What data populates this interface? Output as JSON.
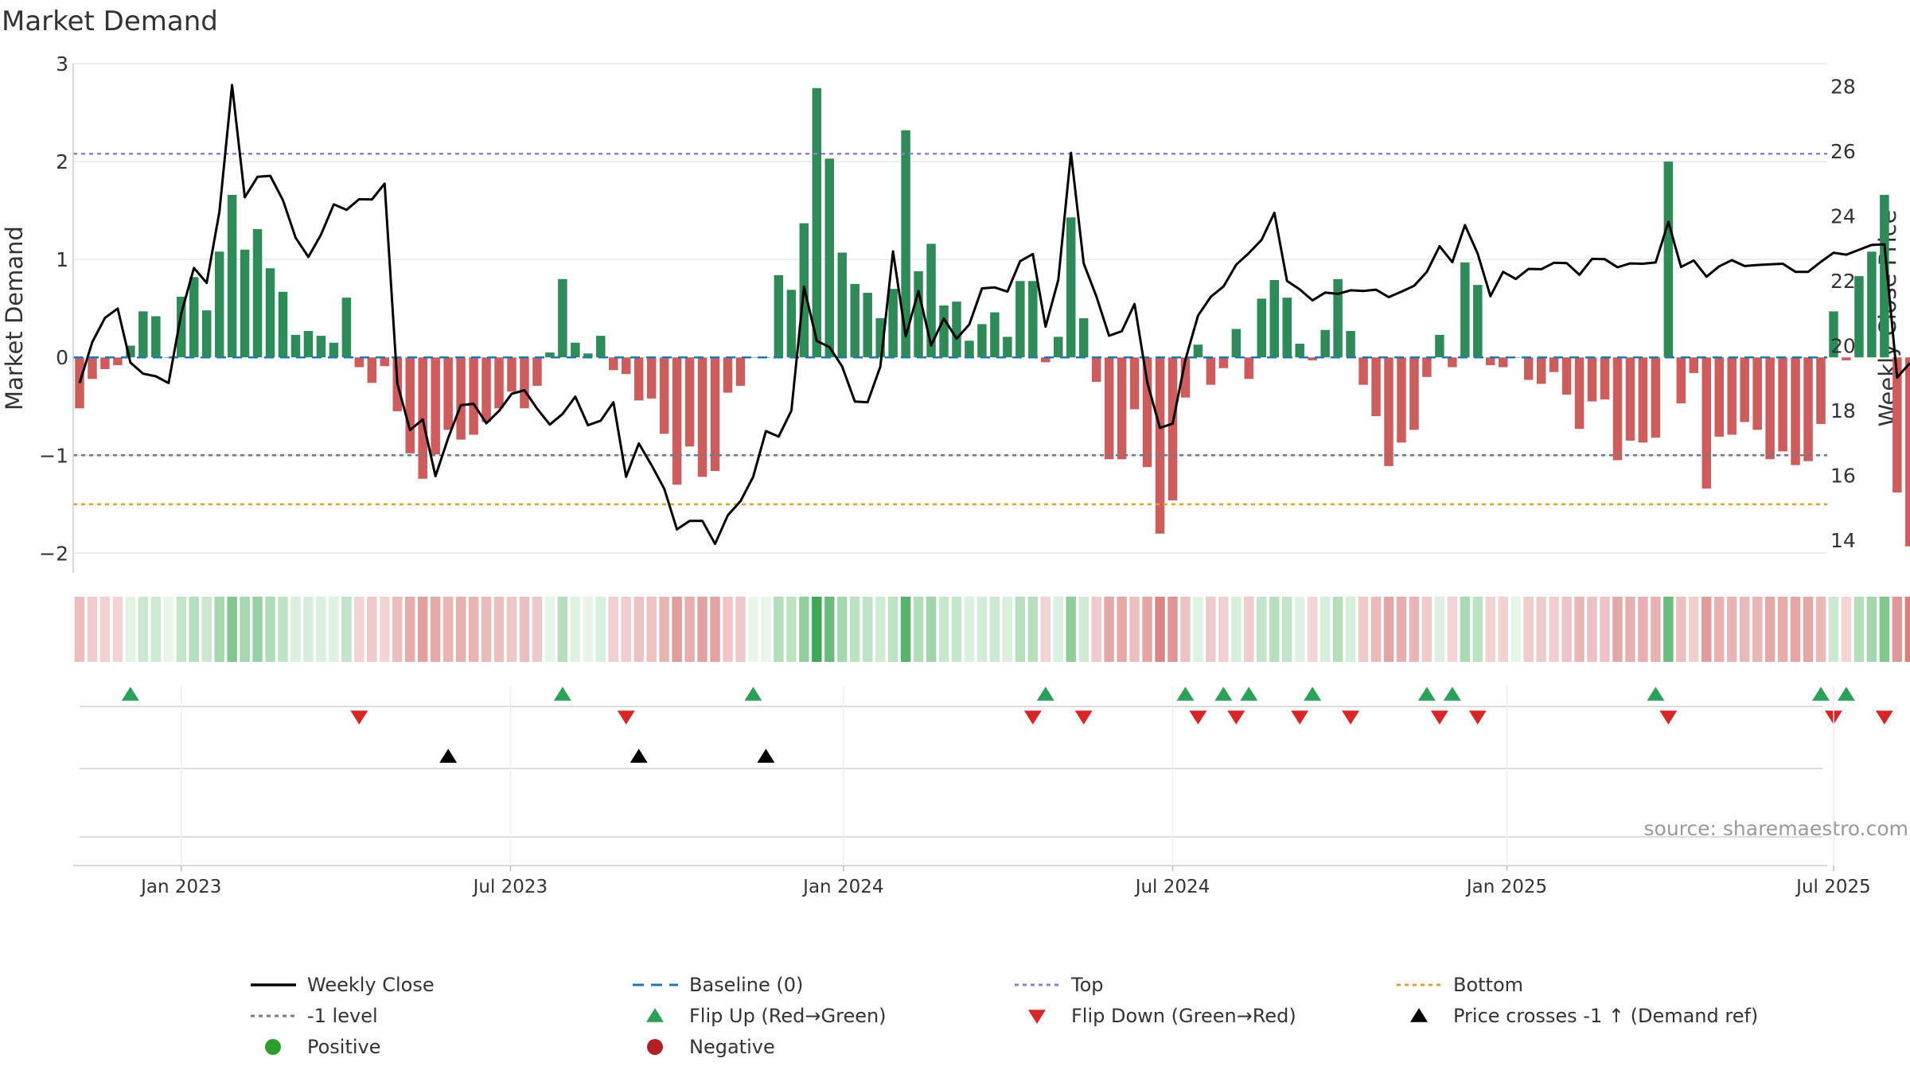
{
  "chart_data": {
    "type": "bar",
    "title": "Market Demand",
    "ylabel": "Market Demand",
    "y2label": "Weekly Close Price",
    "ylim": [
      -2.2,
      3.0
    ],
    "y2lim": [
      13.0,
      28.7
    ],
    "yticks": [
      3,
      2,
      1,
      0,
      -1,
      -2
    ],
    "ytick_labels": [
      "3",
      "2",
      "1",
      "0",
      "−1",
      "−2"
    ],
    "y2ticks": [
      28,
      26,
      24,
      22,
      20,
      18,
      16,
      14
    ],
    "xlim_weeks": [
      -0.5,
      137.5
    ],
    "xticks": [
      {
        "label": "Jan 2023",
        "week": 8.0
      },
      {
        "label": "Jul 2023",
        "week": 33.9
      },
      {
        "label": "Jan 2024",
        "week": 60.1
      },
      {
        "label": "Jul 2024",
        "week": 86.0
      },
      {
        "label": "Jan 2025",
        "week": 112.3
      },
      {
        "label": "Jul 2025",
        "week": 138.0
      }
    ],
    "demand_weekly": [
      -0.52,
      -0.22,
      -0.12,
      -0.08,
      0.12,
      0.47,
      0.42,
      0.0,
      0.62,
      0.82,
      0.48,
      1.08,
      1.66,
      1.1,
      1.31,
      0.91,
      0.67,
      0.23,
      0.27,
      0.22,
      0.15,
      0.61,
      -0.1,
      -0.26,
      -0.09,
      -0.55,
      -0.98,
      -1.24,
      -0.99,
      -0.74,
      -0.84,
      -0.79,
      -0.66,
      -0.52,
      -0.35,
      -0.52,
      -0.29,
      0.05,
      0.8,
      0.15,
      0.04,
      0.22,
      -0.13,
      -0.17,
      -0.44,
      -0.42,
      -0.78,
      -1.3,
      -0.91,
      -1.22,
      -1.16,
      -0.36,
      -0.29,
      0.0,
      0.0,
      0.84,
      0.69,
      1.37,
      2.75,
      2.03,
      1.07,
      0.75,
      0.66,
      0.4,
      0.7,
      2.32,
      0.88,
      1.16,
      0.53,
      0.57,
      0.17,
      0.34,
      0.46,
      0.21,
      0.78,
      0.78,
      -0.05,
      0.21,
      1.43,
      0.4,
      -0.25,
      -1.04,
      -1.04,
      -0.53,
      -1.12,
      -1.8,
      -1.46,
      -0.41,
      0.13,
      -0.28,
      -0.11,
      0.29,
      -0.22,
      0.6,
      0.79,
      0.61,
      0.14,
      -0.03,
      0.28,
      0.8,
      0.27,
      -0.28,
      -0.6,
      -1.11,
      -0.87,
      -0.74,
      -0.2,
      0.23,
      -0.1,
      0.97,
      0.74,
      -0.08,
      -0.1,
      0.0,
      -0.23,
      -0.27,
      -0.15,
      -0.38,
      -0.73,
      -0.45,
      -0.43,
      -1.05,
      -0.85,
      -0.87,
      -0.82,
      2.0,
      -0.47,
      -0.16,
      -1.34,
      -0.81,
      -0.79,
      -0.66,
      -0.74,
      -1.04,
      -0.96,
      -1.1,
      -1.06,
      -0.68,
      0.47,
      -0.03,
      0.83,
      1.08,
      1.66,
      -1.38,
      -1.93
    ],
    "close_weekly": [
      18.85,
      20.12,
      20.86,
      21.15,
      19.48,
      19.14,
      19.06,
      18.85,
      21.0,
      22.4,
      21.94,
      24.13,
      28.04,
      24.58,
      25.21,
      25.24,
      24.49,
      23.33,
      22.74,
      23.43,
      24.36,
      24.19,
      24.52,
      24.51,
      25.0,
      18.83,
      17.4,
      17.73,
      15.98,
      17.15,
      18.17,
      18.21,
      17.61,
      17.99,
      18.52,
      18.63,
      18.06,
      17.57,
      17.9,
      18.43,
      17.55,
      17.69,
      18.26,
      15.96,
      16.99,
      16.32,
      15.59,
      14.34,
      14.6,
      14.6,
      13.89,
      14.77,
      15.21,
      15.96,
      17.37,
      17.2,
      18.0,
      21.82,
      20.15,
      19.96,
      19.36,
      18.28,
      18.26,
      19.36,
      22.91,
      20.29,
      21.69,
      20.01,
      20.84,
      20.22,
      20.66,
      21.77,
      21.8,
      21.67,
      22.61,
      22.83,
      20.59,
      22.03,
      25.95,
      22.54,
      21.52,
      20.31,
      20.45,
      21.29,
      18.87,
      17.47,
      17.6,
      19.57,
      20.93,
      21.51,
      21.83,
      22.5,
      22.86,
      23.27,
      24.1,
      22.0,
      21.74,
      21.4,
      21.64,
      21.6,
      21.71,
      21.69,
      21.73,
      21.5,
      21.67,
      21.85,
      22.28,
      23.07,
      22.58,
      23.72,
      22.84,
      21.53,
      22.28,
      22.06,
      22.37,
      22.36,
      22.56,
      22.55,
      22.19,
      22.68,
      22.67,
      22.42,
      22.54,
      22.53,
      22.57,
      23.82,
      22.43,
      22.63,
      22.13,
      22.45,
      22.64,
      22.46,
      22.49,
      22.51,
      22.53,
      22.28,
      22.28,
      22.59,
      22.87,
      22.81,
      22.96,
      23.11,
      23.13,
      19.02,
      19.47
    ],
    "reference_lines": [
      {
        "name": "Top",
        "value": 2.08,
        "color": "#8c7fd6"
      },
      {
        "name": "-1 level",
        "value": -1.0,
        "color": "#6f7b86"
      },
      {
        "name": "Bottom",
        "value": -1.5,
        "color": "#e0a02e"
      }
    ],
    "flip_up_weeks": [
      4,
      38,
      53,
      76,
      87,
      90,
      92,
      97,
      106,
      108,
      124,
      137,
      139
    ],
    "flip_down_weeks": [
      22,
      43,
      75,
      79,
      88,
      91,
      96,
      100,
      107,
      110,
      125,
      138,
      142
    ],
    "price_cross_weeks": [
      29,
      44,
      54
    ],
    "source": "source: sharemaestro.com",
    "legend": [
      {
        "label": "Weekly Close",
        "kind": "line",
        "color": "#000000"
      },
      {
        "label": "Baseline (0)",
        "kind": "dash",
        "color": "#1f77b4"
      },
      {
        "label": "Top",
        "kind": "dot",
        "color": "#8c7fd6"
      },
      {
        "label": "Bottom",
        "kind": "dot",
        "color": "#e0a02e"
      },
      {
        "label": "-1 level",
        "kind": "dot",
        "color": "#6f7b86"
      },
      {
        "label": "Flip Up (Red→Green)",
        "kind": "triangle-up",
        "color": "#2ca05a"
      },
      {
        "label": "Flip Down (Green→Red)",
        "kind": "triangle-down",
        "color": "#d62728"
      },
      {
        "label": "Price crosses -1 ↑ (Demand ref)",
        "kind": "triangle-up",
        "color": "#000000"
      },
      {
        "label": "Positive",
        "kind": "circle",
        "color": "#2ca02c"
      },
      {
        "label": "Negative",
        "kind": "circle",
        "color": "#b22222"
      }
    ],
    "colors": {
      "positive_bar": "#2e8b57",
      "negative_bar": "#cd5c5c",
      "baseline": "#1f77b4",
      "grid": "#e6e6e6"
    }
  }
}
